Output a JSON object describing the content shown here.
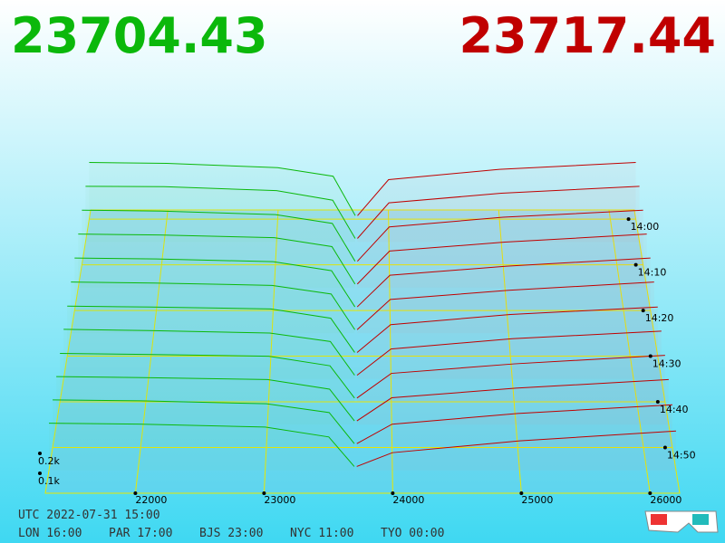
{
  "chart_data": {
    "type": "depth3d",
    "bid": 23704.43,
    "ask": 23717.44,
    "bid_color": "#0bb80b",
    "ask_color": "#c00000",
    "xlim": [
      21300,
      26230
    ],
    "xticks": [
      22000,
      23000,
      24000,
      25000,
      26000
    ],
    "tlim": [
      838,
      900
    ],
    "tticks": [
      {
        "value": 840,
        "label": "14:00"
      },
      {
        "value": 850,
        "label": "14:10"
      },
      {
        "value": 860,
        "label": "14:20"
      },
      {
        "value": 870,
        "label": "14:30"
      },
      {
        "value": 880,
        "label": "14:40"
      },
      {
        "value": 890,
        "label": "14:50"
      }
    ],
    "zticks": [
      {
        "value": 100,
        "label": "0.1k"
      },
      {
        "value": 200,
        "label": "0.2k"
      }
    ],
    "bid_prices": [
      21300,
      22000,
      23000,
      23500,
      23700
    ],
    "ask_prices": [
      23720,
      24000,
      25000,
      26230
    ],
    "times": [
      840,
      845,
      850,
      855,
      860,
      865,
      870,
      875,
      880,
      885,
      890,
      895
    ],
    "bids": [
      [
        330,
        325,
        300,
        250,
        20
      ],
      [
        320,
        318,
        295,
        240,
        20
      ],
      [
        310,
        305,
        285,
        235,
        20
      ],
      [
        300,
        295,
        280,
        230,
        20
      ],
      [
        290,
        285,
        270,
        220,
        20
      ],
      [
        280,
        275,
        262,
        215,
        20
      ],
      [
        270,
        265,
        255,
        205,
        20
      ],
      [
        265,
        258,
        245,
        200,
        20
      ],
      [
        255,
        250,
        240,
        190,
        20
      ],
      [
        250,
        245,
        235,
        185,
        20
      ],
      [
        245,
        240,
        225,
        180,
        20
      ],
      [
        240,
        235,
        220,
        170,
        20
      ]
    ],
    "asks": [
      [
        20,
        230,
        290,
        330
      ],
      [
        20,
        225,
        280,
        320
      ],
      [
        20,
        215,
        270,
        310
      ],
      [
        20,
        205,
        255,
        300
      ],
      [
        20,
        195,
        245,
        290
      ],
      [
        20,
        185,
        235,
        280
      ],
      [
        20,
        170,
        225,
        265
      ],
      [
        20,
        160,
        215,
        255
      ],
      [
        20,
        150,
        200,
        245
      ],
      [
        20,
        140,
        190,
        235
      ],
      [
        20,
        120,
        175,
        220
      ],
      [
        20,
        90,
        150,
        200
      ]
    ],
    "footer": [
      "UTC 2022-07-31 15:00",
      "LON 16:00",
      "PAR 17:00",
      "BJS 23:00",
      "NYC 11:00",
      "TYO 00:00"
    ]
  }
}
